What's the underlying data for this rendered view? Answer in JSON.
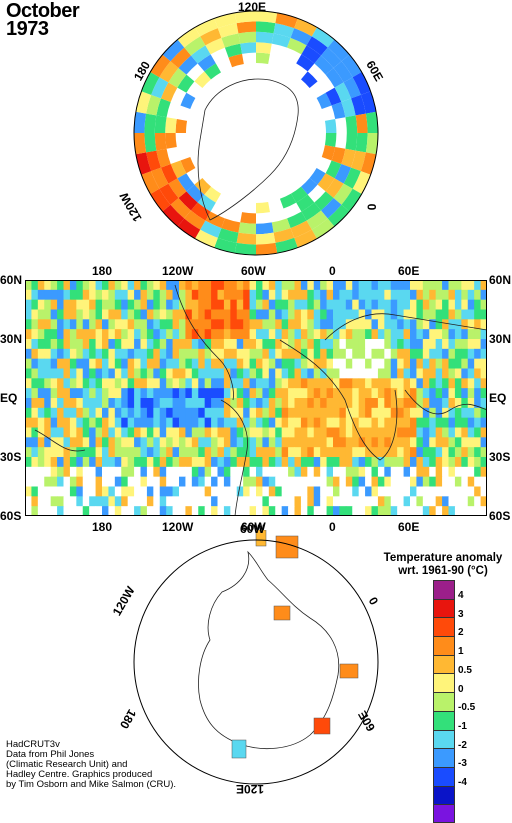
{
  "title": {
    "month": "October",
    "year": "1973"
  },
  "north_polar": {
    "labels": [
      "120E",
      "60E",
      "0",
      "120W",
      "180"
    ]
  },
  "main_map": {
    "lat_labels": [
      "60N",
      "30N",
      "EQ",
      "30S",
      "60S"
    ],
    "lon_labels": [
      "180",
      "120W",
      "60W",
      "0",
      "60E"
    ]
  },
  "south_polar": {
    "labels": [
      "60W",
      "120W",
      "0",
      "180",
      "60E",
      "120E"
    ]
  },
  "legend": {
    "title_line1": "Temperature anomaly",
    "title_line2": "wrt. 1961-90  (°C)",
    "ticks": [
      "4",
      "3",
      "2",
      "1",
      "0.5",
      "0",
      "-0.5",
      "-1",
      "-2",
      "-3",
      "-4"
    ],
    "colors": [
      "#9b1f8a",
      "#e8150e",
      "#ff4a0a",
      "#ff8c1a",
      "#ffb833",
      "#fff47a",
      "#b9f26a",
      "#33e07a",
      "#5ad8f0",
      "#3b9aff",
      "#1a4cff",
      "#0a14c8",
      "#7a14e0"
    ]
  },
  "credits": [
    "HadCRUT3v",
    "Data from Phil Jones",
    "(Climatic Research Unit) and",
    "Hadley Centre.  Graphics produced",
    "by Tim Osborn and Mike Salmon (CRU)."
  ]
}
